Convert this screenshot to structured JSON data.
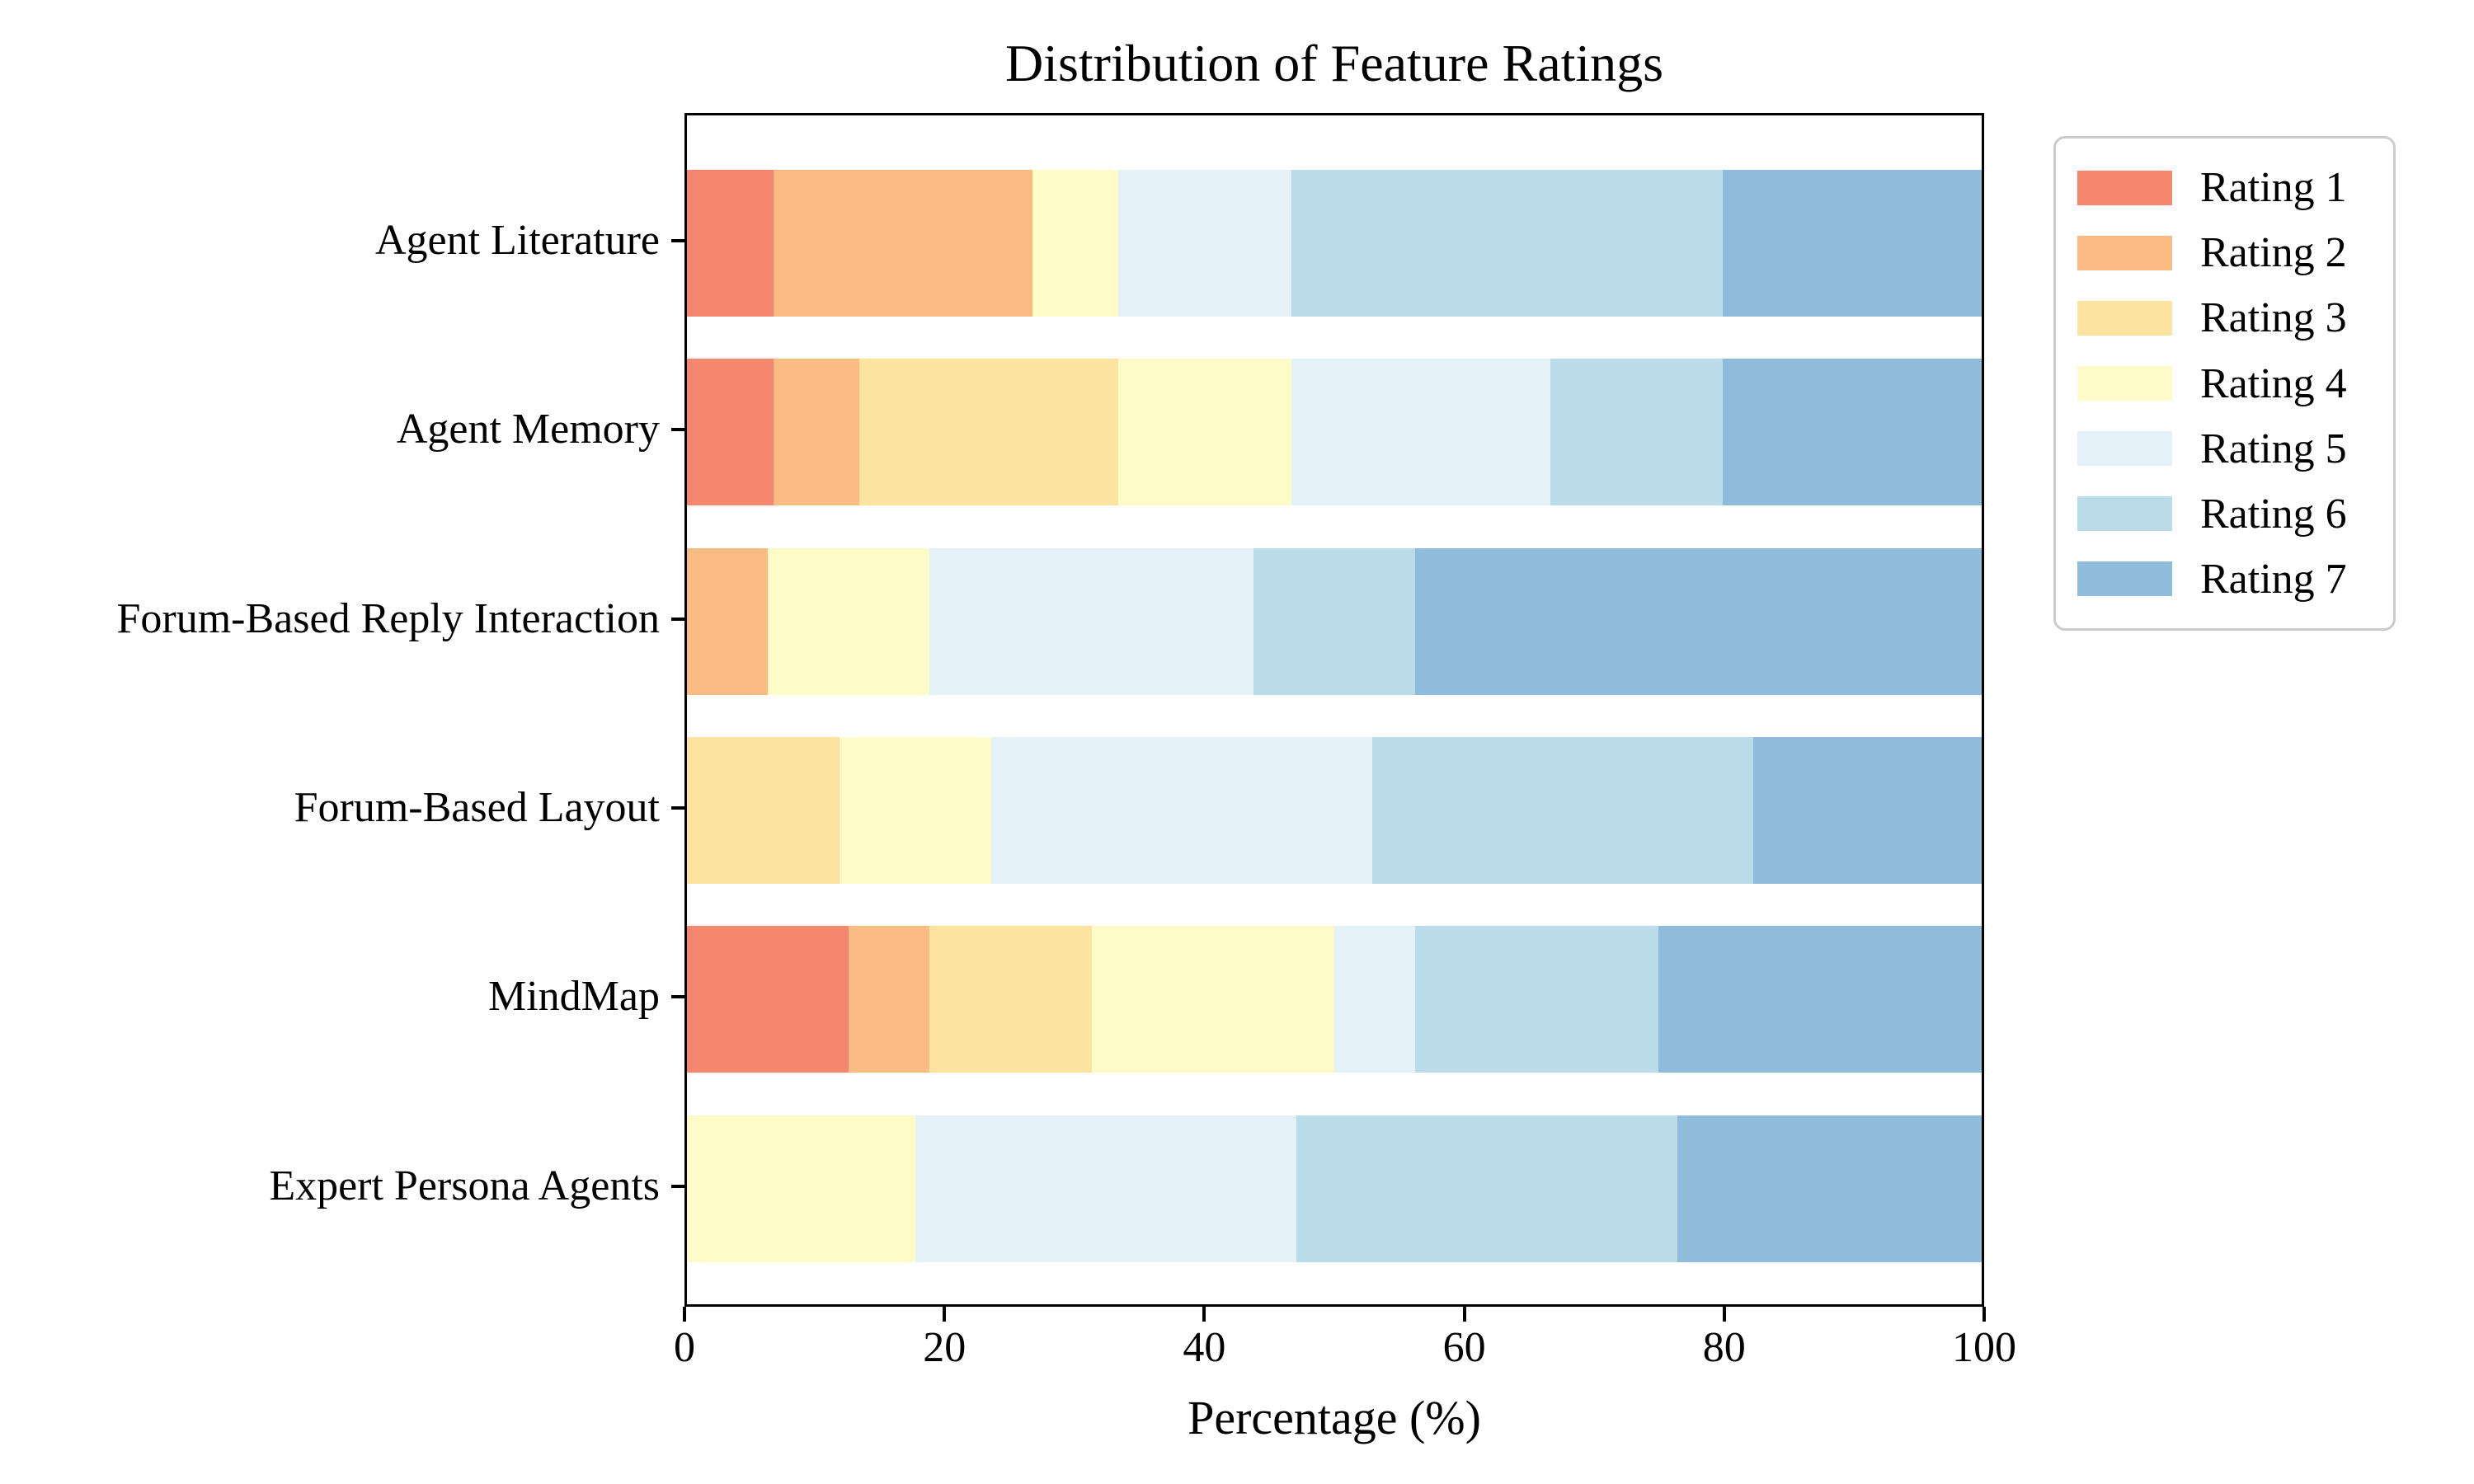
{
  "title": "Distribution of Feature Ratings",
  "axes": {
    "x_label": "Percentage (%)",
    "x_tick_labels": [
      "0",
      "20",
      "40",
      "60",
      "80",
      "100"
    ]
  },
  "legend": {
    "position": "outside-upper-right"
  },
  "chart_data": {
    "type": "bar",
    "orientation": "horizontal",
    "stacked": true,
    "title": "Distribution of Feature Ratings",
    "xlabel": "Percentage (%)",
    "xlim": [
      0,
      100
    ],
    "x_ticks": [
      0,
      20,
      40,
      60,
      80,
      100
    ],
    "grid": false,
    "legend_position": "upper right outside",
    "categories": [
      "Agent Literature",
      "Agent Memory",
      "Forum-Based Reply Interaction",
      "Forum-Based Layout",
      "MindMap",
      "Expert Persona Agents"
    ],
    "series": [
      {
        "name": "Rating 1",
        "color": "#F5876E",
        "values": [
          6.67,
          6.67,
          0,
          0,
          12.5,
          0
        ]
      },
      {
        "name": "Rating 2",
        "color": "#FBBC84",
        "values": [
          20,
          6.67,
          6.25,
          0,
          6.25,
          0
        ]
      },
      {
        "name": "Rating 3",
        "color": "#FCE3A0",
        "values": [
          0,
          20,
          0,
          11.76,
          12.5,
          0
        ]
      },
      {
        "name": "Rating 4",
        "color": "#FDFBC8",
        "values": [
          6.67,
          13.33,
          12.5,
          11.76,
          18.75,
          17.65
        ]
      },
      {
        "name": "Rating 5",
        "color": "#E4F2F8",
        "values": [
          13.33,
          20,
          25,
          29.41,
          6.25,
          29.41
        ]
      },
      {
        "name": "Rating 6",
        "color": "#BADCE9",
        "values": [
          33.33,
          13.33,
          12.5,
          29.41,
          18.75,
          29.41
        ]
      },
      {
        "name": "Rating 7",
        "color": "#8FBCDB",
        "values": [
          20,
          20,
          43.75,
          17.65,
          25,
          23.53
        ]
      }
    ]
  }
}
